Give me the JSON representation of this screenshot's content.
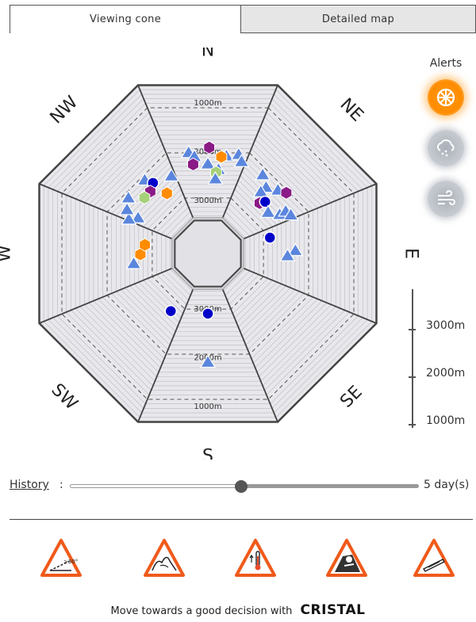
{
  "tabs": [
    {
      "label": "Viewing cone",
      "active": true
    },
    {
      "label": "Detailed map",
      "active": false
    }
  ],
  "rose": {
    "directions": [
      "N",
      "NE",
      "E",
      "SE",
      "S",
      "SW",
      "W",
      "NW"
    ],
    "ring_labels_north": [
      "1000m",
      "2000m",
      "3000m"
    ],
    "ring_labels_south": [
      "3000m",
      "2000m",
      "1000m"
    ],
    "colors": {
      "face": "#e8e8ec",
      "outline": "#444444",
      "avalanche": "#5b86dd",
      "blue": "#0000c8",
      "purple": "#8a1a86",
      "orange": "#ff8c00",
      "green": "#a6d07a"
    },
    "observations": [
      {
        "dir": "N",
        "alt": 2060,
        "offset": 0.02,
        "kind": "hex-purple"
      },
      {
        "dir": "N",
        "alt": 2200,
        "offset": 0.3,
        "kind": "tri"
      },
      {
        "dir": "N",
        "alt": 2230,
        "offset": 0.22,
        "kind": "hex-orange"
      },
      {
        "dir": "N",
        "alt": 2130,
        "offset": -0.3,
        "kind": "tri"
      },
      {
        "dir": "N",
        "alt": 2230,
        "offset": -0.22,
        "kind": "tri"
      },
      {
        "dir": "N",
        "alt": 2380,
        "offset": -0.26,
        "kind": "hex-purple"
      },
      {
        "dir": "N",
        "alt": 2400,
        "offset": 0.0,
        "kind": "tri"
      },
      {
        "dir": "N",
        "alt": 2500,
        "offset": 0.2,
        "kind": "tri"
      },
      {
        "dir": "N",
        "alt": 2560,
        "offset": 0.16,
        "kind": "hex-green"
      },
      {
        "dir": "N",
        "alt": 2700,
        "offset": 0.16,
        "kind": "tri"
      },
      {
        "dir": "N",
        "alt": 2110,
        "offset": 0.48,
        "kind": "tri"
      },
      {
        "dir": "N",
        "alt": 2230,
        "offset": 0.56,
        "kind": "tri"
      },
      {
        "dir": "NE",
        "alt": 2270,
        "offset": -0.28,
        "kind": "tri"
      },
      {
        "dir": "NE",
        "alt": 2430,
        "offset": -0.1,
        "kind": "tri"
      },
      {
        "dir": "NE",
        "alt": 2570,
        "offset": -0.12,
        "kind": "tri"
      },
      {
        "dir": "NE",
        "alt": 2750,
        "offset": 0.02,
        "kind": "hex-purple"
      },
      {
        "dir": "NE",
        "alt": 2650,
        "offset": 0.08,
        "kind": "circle"
      },
      {
        "dir": "NE",
        "alt": 2300,
        "offset": 0.08,
        "kind": "tri"
      },
      {
        "dir": "NE",
        "alt": 2200,
        "offset": 0.2,
        "kind": "hex-purple"
      },
      {
        "dir": "NE",
        "alt": 2740,
        "offset": 0.3,
        "kind": "tri"
      },
      {
        "dir": "NE",
        "alt": 2560,
        "offset": 0.46,
        "kind": "tri"
      },
      {
        "dir": "NE",
        "alt": 2420,
        "offset": 0.46,
        "kind": "tri"
      },
      {
        "dir": "NE",
        "alt": 2360,
        "offset": 0.56,
        "kind": "tri"
      },
      {
        "dir": "E",
        "alt": 2930,
        "offset": -0.4,
        "kind": "circle"
      },
      {
        "dir": "E",
        "alt": 2920,
        "offset": -0.4,
        "kind": "circle"
      },
      {
        "dir": "E",
        "alt": 2440,
        "offset": -0.05,
        "kind": "tri"
      },
      {
        "dir": "E",
        "alt": 2600,
        "offset": 0.05,
        "kind": "tri"
      },
      {
        "dir": "S",
        "alt": 3000,
        "offset": 0.0,
        "kind": "circle"
      },
      {
        "dir": "S",
        "alt": 2000,
        "offset": 0.0,
        "kind": "tri"
      },
      {
        "dir": "SW",
        "alt": 2830,
        "offset": -0.34,
        "kind": "circle"
      },
      {
        "dir": "W",
        "alt": 2850,
        "offset": -0.02,
        "kind": "hex-orange"
      },
      {
        "dir": "W",
        "alt": 2930,
        "offset": 0.22,
        "kind": "hex-orange"
      },
      {
        "dir": "W",
        "alt": 2700,
        "offset": -0.22,
        "kind": "tri"
      },
      {
        "dir": "NW",
        "alt": 2250,
        "offset": 0.12,
        "kind": "tri"
      },
      {
        "dir": "NW",
        "alt": 2400,
        "offset": 0.2,
        "kind": "circle"
      },
      {
        "dir": "NW",
        "alt": 2500,
        "offset": 0.06,
        "kind": "hex-purple"
      },
      {
        "dir": "NW",
        "alt": 2500,
        "offset": -0.1,
        "kind": "hex-green"
      },
      {
        "dir": "NW",
        "alt": 2740,
        "offset": 0.3,
        "kind": "hex-orange"
      },
      {
        "dir": "NW",
        "alt": 2250,
        "offset": -0.28,
        "kind": "tri"
      },
      {
        "dir": "NW",
        "alt": 2630,
        "offset": -0.5,
        "kind": "tri"
      },
      {
        "dir": "NW",
        "alt": 2470,
        "offset": -0.6,
        "kind": "tri"
      },
      {
        "dir": "NW",
        "alt": 2350,
        "offset": -0.46,
        "kind": "tri"
      },
      {
        "dir": "NW",
        "alt": 2480,
        "offset": 0.55,
        "kind": "tri"
      }
    ]
  },
  "alerts": {
    "title": "Alerts",
    "items": [
      {
        "icon": "sun-icon",
        "active": true
      },
      {
        "icon": "snow-cloud-icon",
        "active": false
      },
      {
        "icon": "wind-icon",
        "active": false
      }
    ]
  },
  "altitude_scale": {
    "labels": [
      "3000m",
      "2000m",
      "1000m"
    ]
  },
  "history": {
    "label": "History",
    "colon": ":",
    "value": "5 day(s)",
    "fraction": 0.49
  },
  "hazards": [
    {
      "icon": "slope-30-icon",
      "text": ">30°"
    },
    {
      "icon": "terrain-trap-icon",
      "text": ""
    },
    {
      "icon": "temperature-rise-icon",
      "text": ""
    },
    {
      "icon": "skier-hazard-icon",
      "text": ""
    },
    {
      "icon": "glide-crack-icon",
      "text": ""
    }
  ],
  "footer": {
    "text": "Move towards a good decision with",
    "brand": "CRISTAL"
  }
}
